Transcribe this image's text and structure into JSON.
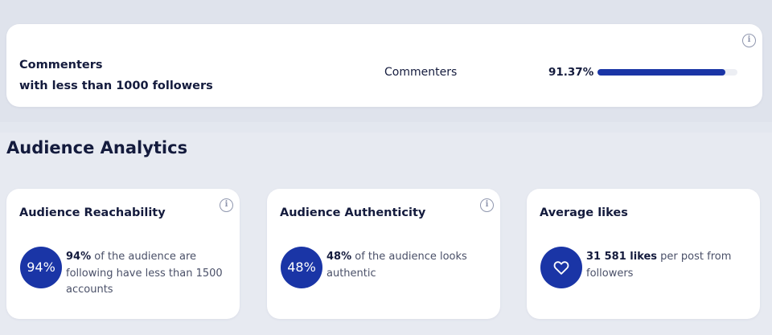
{
  "commenters": {
    "title_line1": "Commenters",
    "title_line2": "with less than 1000 followers",
    "label": "Commenters",
    "percent_text": "91.37%",
    "percent_value": 91.37
  },
  "section_title": "Audience Analytics",
  "cards": [
    {
      "title": "Audience Reachability",
      "badge": "94%",
      "highlight": "94%",
      "text": " of the audience are following have less than 1500 accounts",
      "has_info": true
    },
    {
      "title": "Audience Authenticity",
      "badge": "48%",
      "highlight": "48%",
      "text": " of the audience looks authentic",
      "has_info": true
    },
    {
      "title": "Average likes",
      "icon": "heart-icon",
      "highlight": "31 581 likes",
      "text": " per post from followers",
      "has_info": false
    }
  ],
  "info_glyph": "i",
  "colors": {
    "accent": "#1a35a6",
    "text_dark": "#141b3d",
    "text_muted": "#4a5068",
    "background": "#e3e7ef",
    "card": "#ffffff"
  }
}
